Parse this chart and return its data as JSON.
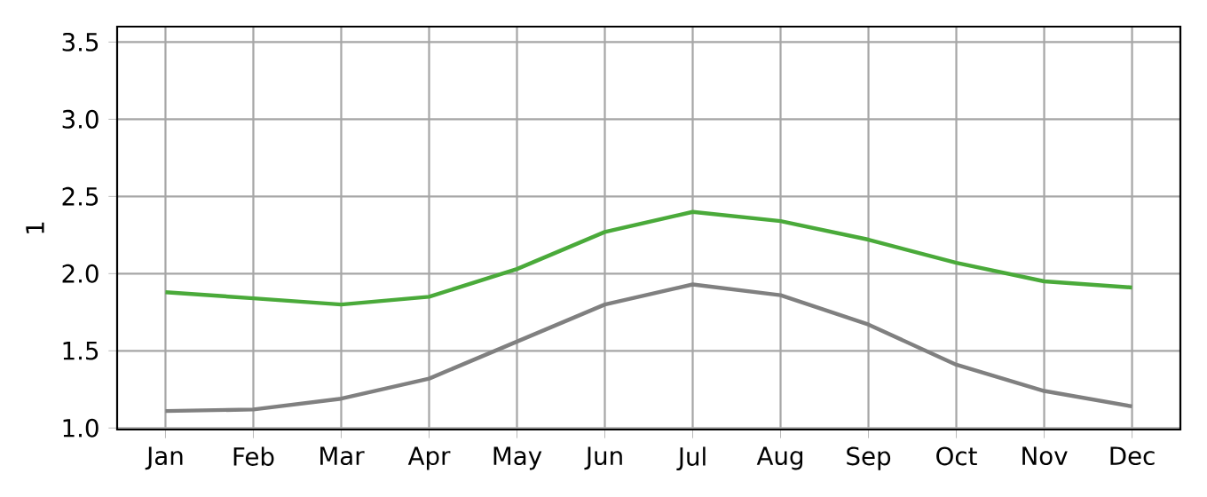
{
  "chart_data": {
    "type": "line",
    "ylabel": "1",
    "categories": [
      "Jan",
      "Feb",
      "Mar",
      "Apr",
      "May",
      "Jun",
      "Jul",
      "Aug",
      "Sep",
      "Oct",
      "Nov",
      "Dec"
    ],
    "series": [
      {
        "color": "#4aaa3a",
        "values": [
          1.88,
          1.84,
          1.8,
          1.85,
          2.03,
          2.27,
          2.4,
          2.34,
          2.22,
          2.07,
          1.95,
          1.91
        ]
      },
      {
        "color": "#808080",
        "values": [
          1.11,
          1.12,
          1.19,
          1.32,
          1.56,
          1.8,
          1.93,
          1.86,
          1.67,
          1.41,
          1.24,
          1.14
        ]
      }
    ],
    "ylim": [
      0.99,
      3.6
    ],
    "yticks": [
      {
        "value": 1.0,
        "label": "1.0"
      },
      {
        "value": 1.5,
        "label": "1.5"
      },
      {
        "value": 2.0,
        "label": "2.0"
      },
      {
        "value": 2.5,
        "label": "2.5"
      },
      {
        "value": 3.0,
        "label": "3.0"
      },
      {
        "value": 3.5,
        "label": "3.5"
      }
    ],
    "grid": true,
    "marker": "none",
    "line_style": "solid"
  }
}
